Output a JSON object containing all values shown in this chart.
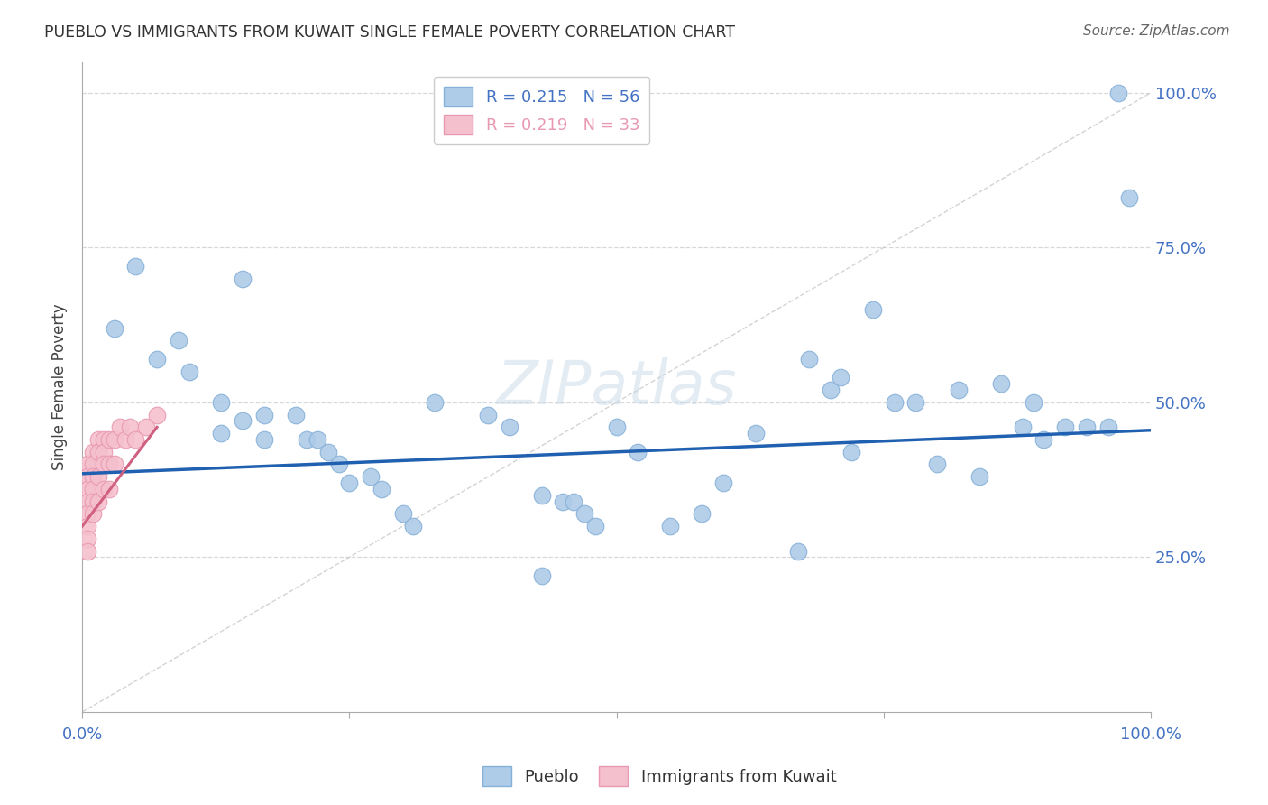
{
  "title": "PUEBLO VS IMMIGRANTS FROM KUWAIT SINGLE FEMALE POVERTY CORRELATION CHART",
  "source": "Source: ZipAtlas.com",
  "ylabel": "Single Female Poverty",
  "watermark": "ZIPatlas",
  "pueblo_x": [
    0.03,
    0.07,
    0.1,
    0.13,
    0.13,
    0.15,
    0.17,
    0.17,
    0.2,
    0.21,
    0.22,
    0.23,
    0.24,
    0.25,
    0.27,
    0.28,
    0.3,
    0.33,
    0.38,
    0.4,
    0.43,
    0.45,
    0.46,
    0.47,
    0.48,
    0.5,
    0.52,
    0.55,
    0.58,
    0.6,
    0.63,
    0.68,
    0.7,
    0.71,
    0.74,
    0.76,
    0.78,
    0.8,
    0.82,
    0.84,
    0.86,
    0.88,
    0.89,
    0.9,
    0.92,
    0.94,
    0.96,
    0.97,
    0.98,
    0.15,
    0.09,
    0.05,
    0.31,
    0.43,
    0.67,
    0.72
  ],
  "pueblo_y": [
    0.62,
    0.57,
    0.55,
    0.5,
    0.45,
    0.47,
    0.44,
    0.48,
    0.48,
    0.44,
    0.44,
    0.42,
    0.4,
    0.37,
    0.38,
    0.36,
    0.32,
    0.5,
    0.48,
    0.46,
    0.35,
    0.34,
    0.34,
    0.32,
    0.3,
    0.46,
    0.42,
    0.3,
    0.32,
    0.37,
    0.45,
    0.57,
    0.52,
    0.54,
    0.65,
    0.5,
    0.5,
    0.4,
    0.52,
    0.38,
    0.53,
    0.46,
    0.5,
    0.44,
    0.46,
    0.46,
    0.46,
    1.0,
    0.83,
    0.7,
    0.6,
    0.72,
    0.3,
    0.22,
    0.26,
    0.42
  ],
  "kuwait_x": [
    0.005,
    0.005,
    0.005,
    0.005,
    0.005,
    0.005,
    0.005,
    0.005,
    0.01,
    0.01,
    0.01,
    0.01,
    0.01,
    0.01,
    0.015,
    0.015,
    0.015,
    0.015,
    0.02,
    0.02,
    0.02,
    0.02,
    0.025,
    0.025,
    0.025,
    0.03,
    0.03,
    0.035,
    0.04,
    0.045,
    0.05,
    0.06,
    0.07
  ],
  "kuwait_y": [
    0.4,
    0.38,
    0.36,
    0.34,
    0.32,
    0.3,
    0.28,
    0.26,
    0.42,
    0.4,
    0.38,
    0.36,
    0.34,
    0.32,
    0.44,
    0.42,
    0.38,
    0.34,
    0.44,
    0.42,
    0.4,
    0.36,
    0.44,
    0.4,
    0.36,
    0.44,
    0.4,
    0.46,
    0.44,
    0.46,
    0.44,
    0.46,
    0.48
  ],
  "pueblo_color": "#aecbe8",
  "pueblo_edgecolor": "#85b0d8",
  "kuwait_color": "#f5c0ce",
  "kuwait_edgecolor": "#e898b0",
  "blue_line_color": "#2060b0",
  "pink_line_color": "#d06080",
  "diagonal_color": "#c8c8c8",
  "grid_color": "#d8d8d8",
  "title_color": "#333333",
  "tick_label_color": "#4472c4",
  "background_color": "#ffffff",
  "xlim": [
    0.0,
    1.0
  ],
  "ylim": [
    0.0,
    1.05
  ],
  "yticks": [
    0.25,
    0.5,
    0.75,
    1.0
  ],
  "yticklabels": [
    "25.0%",
    "50.0%",
    "75.0%",
    "100.0%"
  ],
  "xtick_positions": [
    0.0,
    1.0
  ],
  "xticklabels": [
    "0.0%",
    "100.0%"
  ],
  "blue_line_x0": 0.0,
  "blue_line_y0": 0.385,
  "blue_line_x1": 1.0,
  "blue_line_y1": 0.455,
  "pink_line_x0": 0.0,
  "pink_line_y0": 0.3,
  "pink_line_x1": 0.07,
  "pink_line_y1": 0.46
}
